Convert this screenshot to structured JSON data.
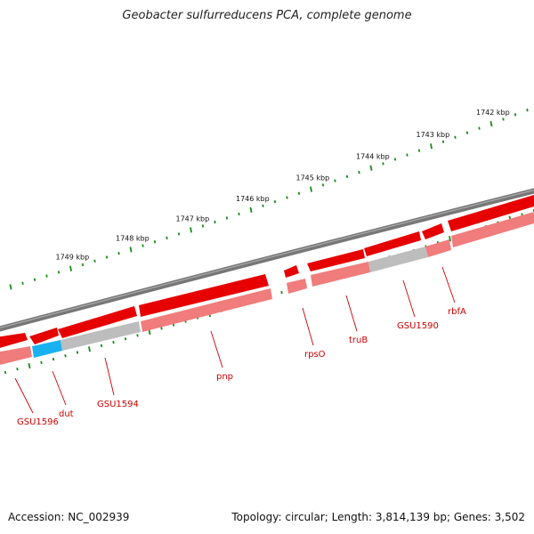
{
  "title": "Geobacter sulfurreducens PCA, complete genome",
  "footer": {
    "accession": "Accession: NC_002939",
    "summary": "Topology: circular; Length: 3,814,139 bp; Genes: 3,502"
  },
  "colors": {
    "forward_cds": "#e60000",
    "reverse_cds": "#f07c7c",
    "grey_track": "#bdbdbd",
    "highlight": "#19b2f0",
    "backbone": "#777777",
    "ruler": "#1a8a1a",
    "gene_label": "#cc0000"
  },
  "ruler": {
    "unit": "kbp",
    "ticks": [
      {
        "kbp": 1742,
        "label": "1742 kbp"
      },
      {
        "kbp": 1743,
        "label": "1743 kbp"
      },
      {
        "kbp": 1744,
        "label": "1744 kbp"
      },
      {
        "kbp": 1745,
        "label": "1745 kbp"
      },
      {
        "kbp": 1746,
        "label": "1746 kbp"
      },
      {
        "kbp": 1747,
        "label": "1747 kbp"
      },
      {
        "kbp": 1748,
        "label": "1748 kbp"
      },
      {
        "kbp": 1749,
        "label": "1749 kbp"
      }
    ]
  },
  "gene_labels": [
    {
      "name": "GSU1596"
    },
    {
      "name": "dut"
    },
    {
      "name": "GSU1594"
    },
    {
      "name": "pnp"
    },
    {
      "name": "rpsO"
    },
    {
      "name": "truB"
    },
    {
      "name": "GSU1590"
    },
    {
      "name": "rbfA"
    }
  ]
}
